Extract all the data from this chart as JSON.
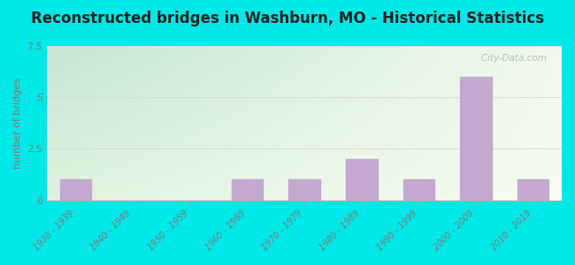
{
  "title": "Reconstructed bridges in Washburn, MO - Historical Statistics",
  "ylabel": "number of bridges",
  "categories": [
    "1930 - 1939",
    "1940 - 1949",
    "1950 - 1959",
    "1960 - 1969",
    "1970 - 1979",
    "1980 - 1989",
    "1990 - 1999",
    "2000 - 2009",
    "2010 - 2019"
  ],
  "values": [
    1,
    0,
    0,
    1,
    1,
    2,
    1,
    6,
    1
  ],
  "bar_color": "#c4a8d0",
  "ylim": [
    0,
    7.5
  ],
  "yticks": [
    0,
    2.5,
    5,
    7.5
  ],
  "background_outer": "#00e8e8",
  "bg_top_left": "#b8ddc8",
  "bg_top_right": "#e8f0e0",
  "bg_bottom": "#f8faf0",
  "title_fontsize": 12,
  "ylabel_fontsize": 8,
  "watermark_text": "   City-Data.com",
  "title_color": "#222222",
  "tick_label_color": "#887878",
  "ylabel_color": "#887878",
  "grid_color": "#d8d8d8",
  "ytick_labels": [
    "0",
    "2.5",
    "5",
    "7.5"
  ]
}
